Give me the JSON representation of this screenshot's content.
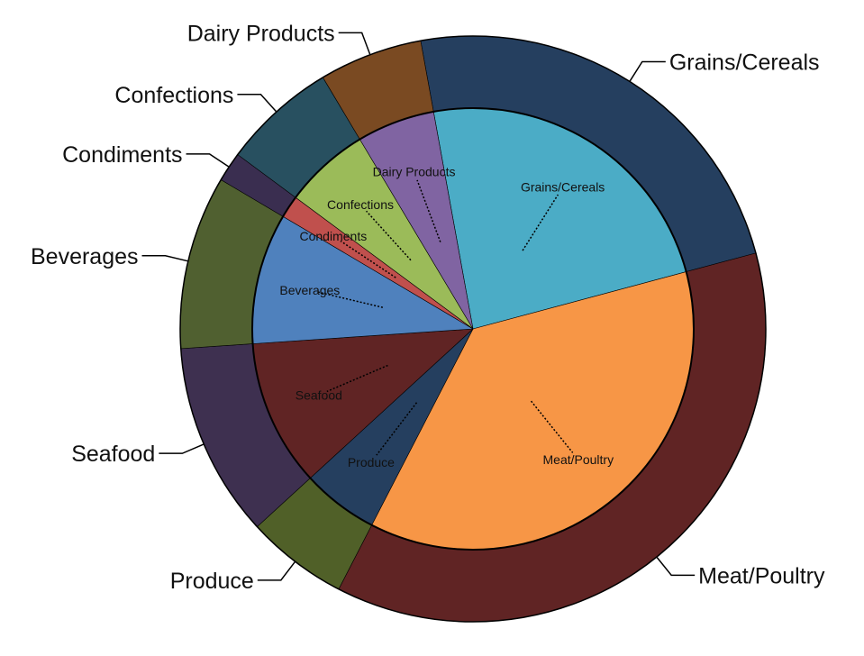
{
  "chart_data": {
    "type": "pie",
    "variant": "nested-donut",
    "outer_ring": [
      {
        "label": "Grains/Cereals",
        "value": 24.5,
        "color": "#253f5f"
      },
      {
        "label": "Meat/Poultry",
        "value": 38.0,
        "color": "#602424"
      },
      {
        "label": "Produce",
        "value": 5.8,
        "color": "#506028"
      },
      {
        "label": "Seafood",
        "value": 11.1,
        "color": "#3e3050"
      },
      {
        "label": "Beverages",
        "value": 9.9,
        "color": "#506030"
      },
      {
        "label": "Condiments",
        "value": 1.7,
        "color": "#3a2e50"
      },
      {
        "label": "Confections",
        "value": 6.5,
        "color": "#285060"
      },
      {
        "label": "Dairy Products",
        "value": 5.9,
        "color": "#7a4a22"
      }
    ],
    "inner_ring": [
      {
        "label": "Grains/Cereals",
        "value": 24.5,
        "color": "#4bacc6"
      },
      {
        "label": "Meat/Poultry",
        "value": 38.0,
        "color": "#f79646"
      },
      {
        "label": "Produce",
        "value": 5.8,
        "color": "#253f5f"
      },
      {
        "label": "Seafood",
        "value": 11.1,
        "color": "#602424"
      },
      {
        "label": "Beverages",
        "value": 9.9,
        "color": "#4f81bd"
      },
      {
        "label": "Condiments",
        "value": 1.7,
        "color": "#c0504d"
      },
      {
        "label": "Confections",
        "value": 6.5,
        "color": "#9bbb59"
      },
      {
        "label": "Dairy Products",
        "value": 5.9,
        "color": "#8064a2"
      }
    ],
    "border_color": "#000000"
  }
}
